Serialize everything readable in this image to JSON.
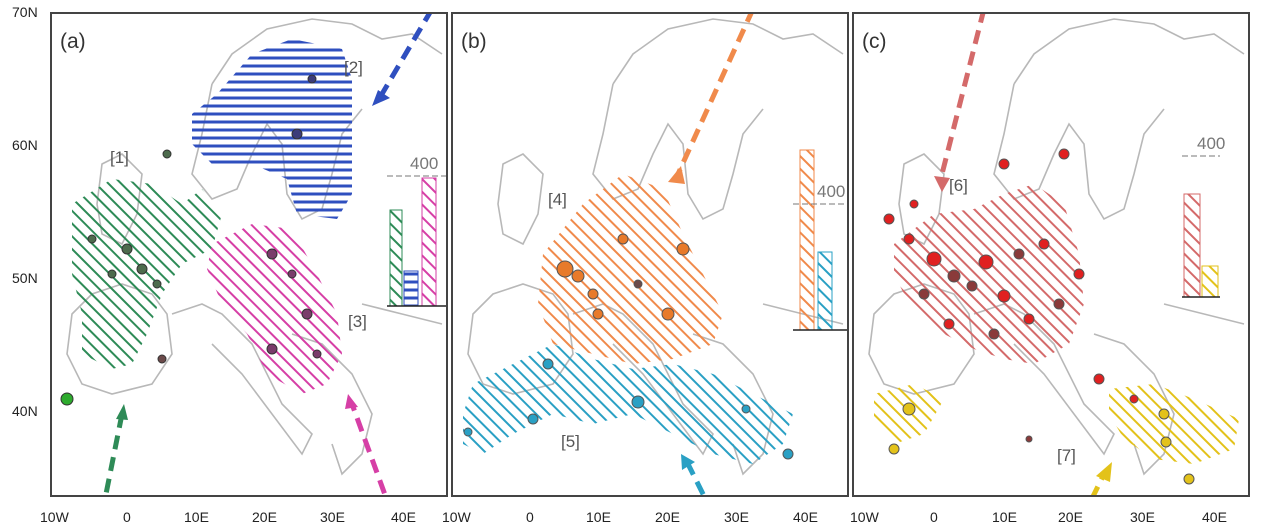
{
  "y_ticks": [
    "70N",
    "60N",
    "50N",
    "40N"
  ],
  "x_ticks": [
    "10W",
    "0",
    "10E",
    "20E",
    "30E",
    "40E"
  ],
  "panels": [
    {
      "label": "(a)",
      "regions": [
        {
          "label": "[1]",
          "color": "#2e8b57"
        },
        {
          "label": "[2]",
          "color": "#2f4fbf"
        },
        {
          "label": "[3]",
          "color": "#d63fa6"
        }
      ],
      "bar_label": "400"
    },
    {
      "label": "(b)",
      "regions": [
        {
          "label": "[4]",
          "color": "#f08a4b"
        },
        {
          "label": "[5]",
          "color": "#2aa0c4"
        }
      ],
      "bar_label": "400"
    },
    {
      "label": "(c)",
      "regions": [
        {
          "label": "[6]",
          "color": "#d46a6a"
        },
        {
          "label": "[7]",
          "color": "#e3c21a"
        }
      ],
      "bar_label": "400"
    }
  ],
  "colors": {
    "land_outline": "#b8b8b8",
    "marker_dark": "#6b4a4a",
    "marker_red": "#e02020"
  }
}
